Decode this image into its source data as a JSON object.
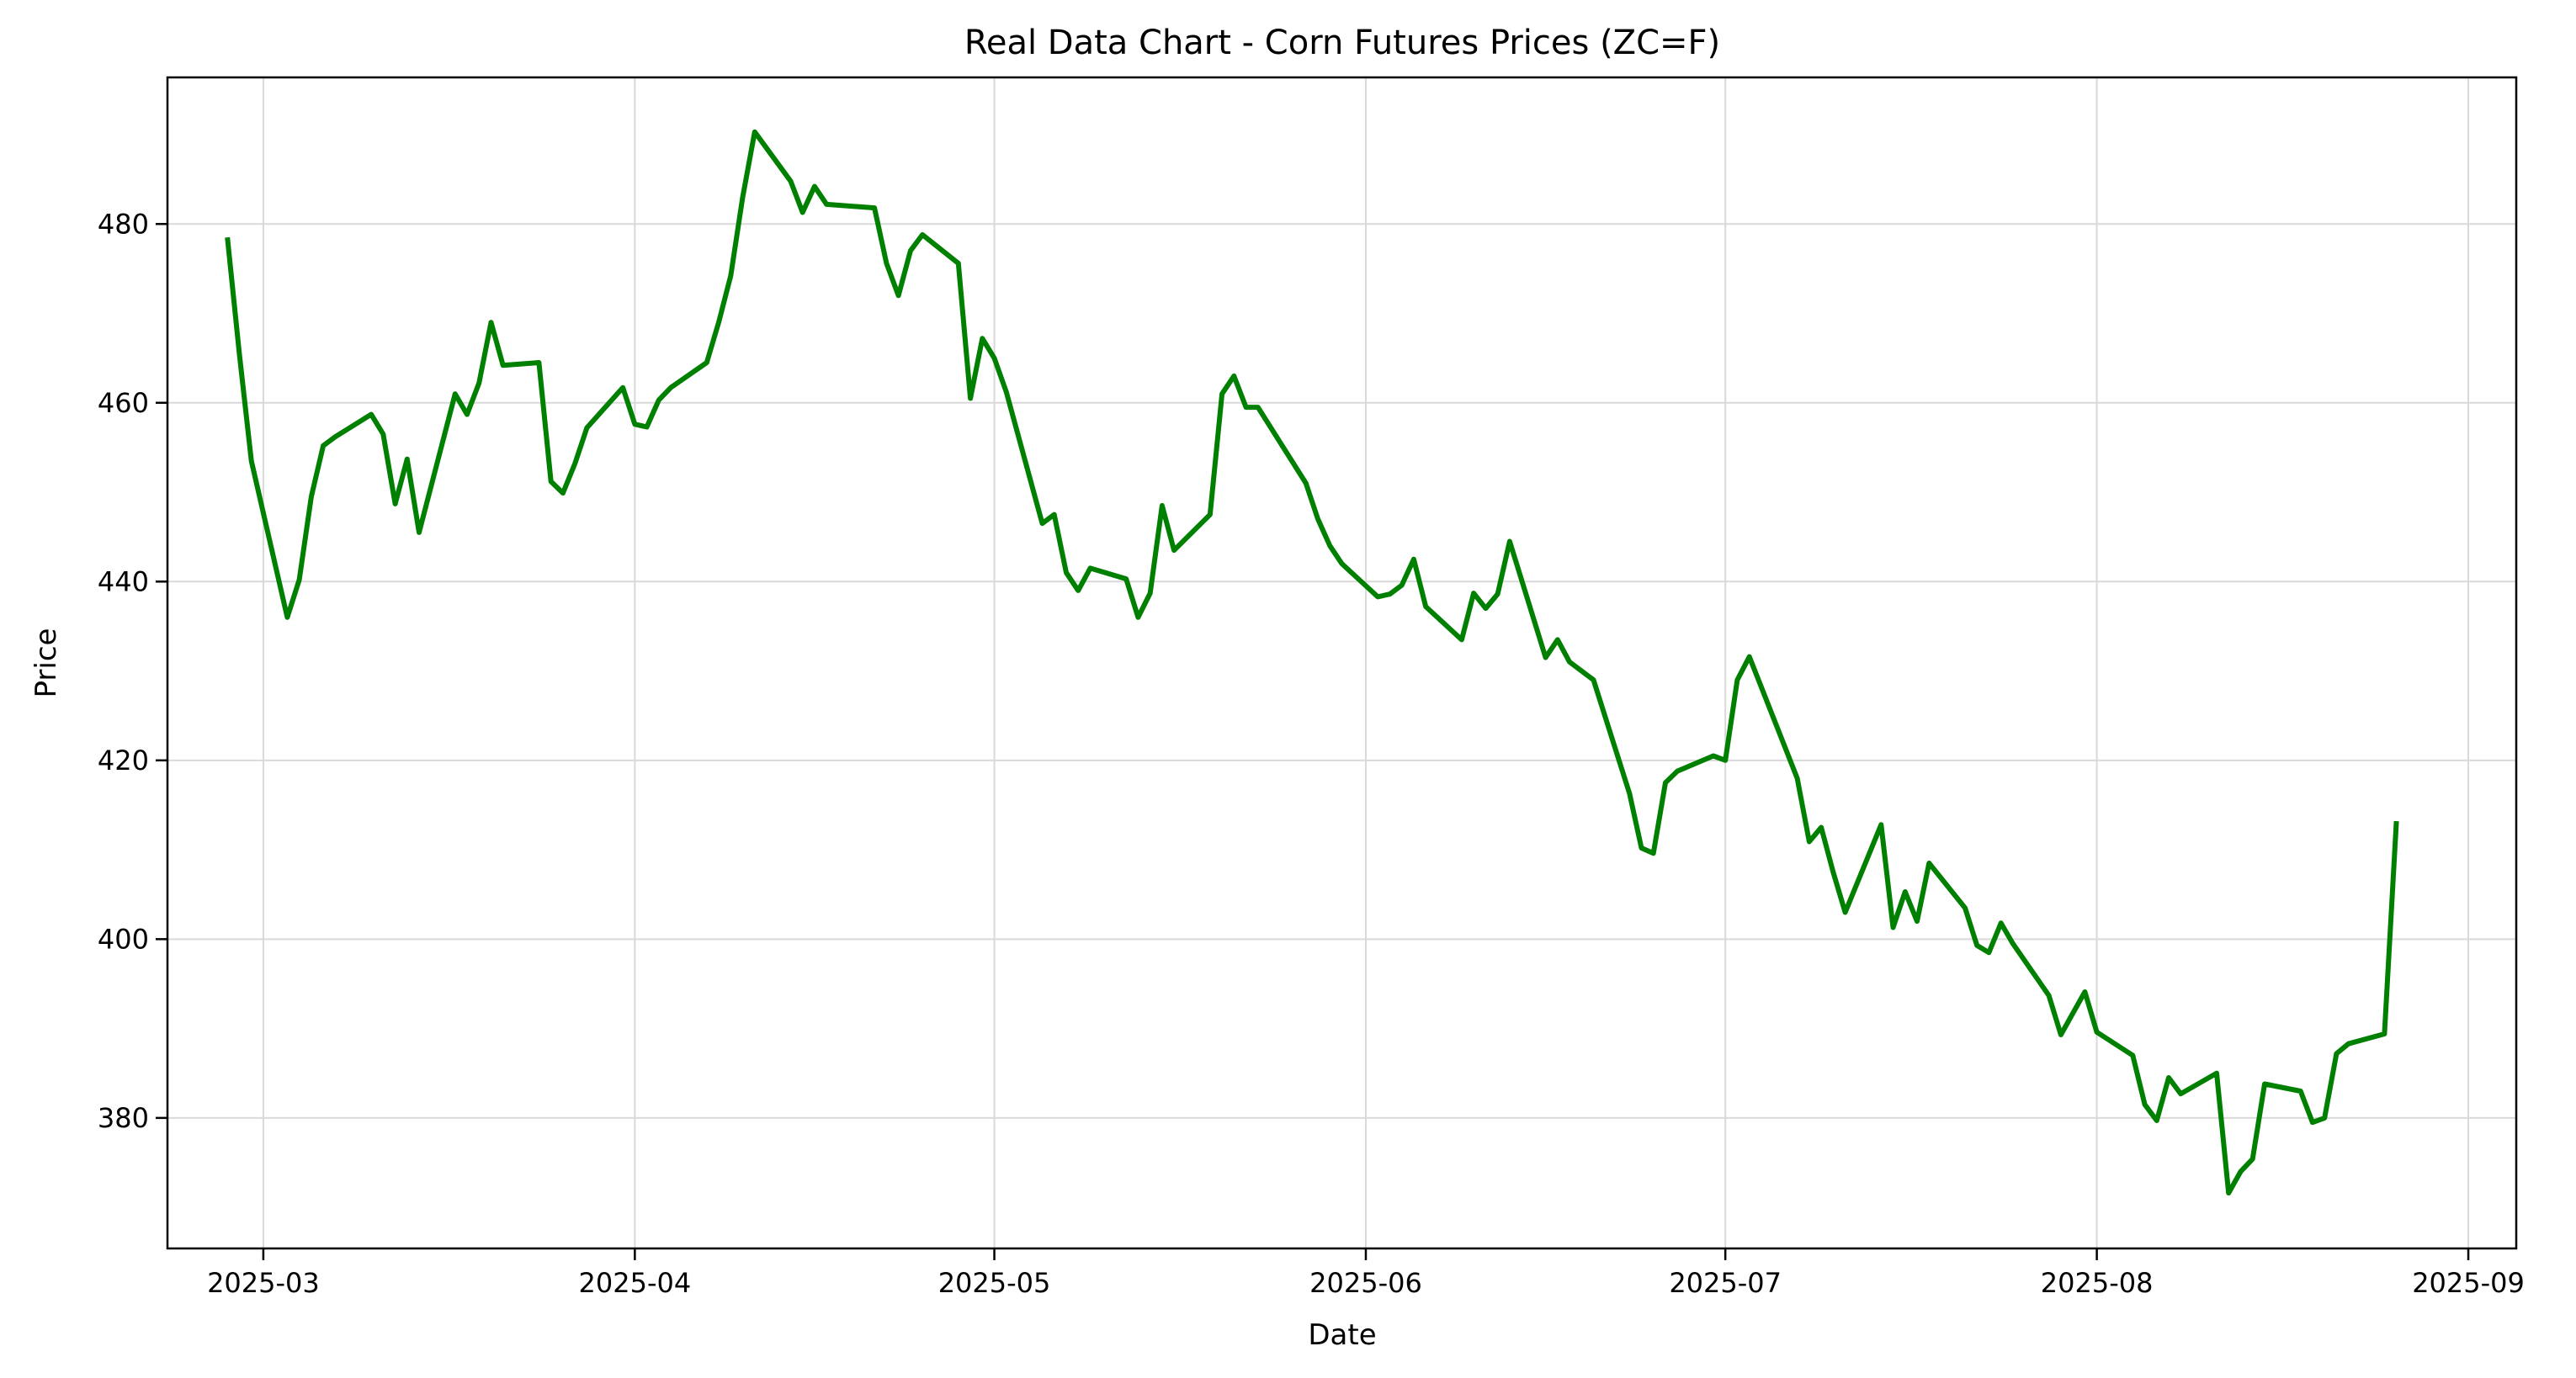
{
  "chart_data": {
    "type": "line",
    "title": "Real Data Chart - Corn Futures Prices (ZC=F)",
    "xlabel": "Date",
    "ylabel": "Price",
    "line_color": "#008000",
    "grid": true,
    "legend": "none",
    "xlim": [
      "2025-02-21",
      "2025-09-05"
    ],
    "ylim": [
      365.4,
      496.4
    ],
    "x_ticks": [
      "2025-03-01",
      "2025-04-01",
      "2025-05-01",
      "2025-06-01",
      "2025-07-01",
      "2025-08-01",
      "2025-09-01"
    ],
    "x_tick_labels": [
      "2025-03",
      "2025-04",
      "2025-05",
      "2025-06",
      "2025-07",
      "2025-08",
      "2025-09"
    ],
    "y_ticks": [
      380,
      400,
      420,
      440,
      460,
      480
    ],
    "y_tick_labels": [
      "380",
      "400",
      "420",
      "440",
      "460",
      "480"
    ],
    "series": [
      {
        "x": [
          "2025-02-26",
          "2025-02-27",
          "2025-02-28",
          "2025-03-03",
          "2025-03-04",
          "2025-03-05",
          "2025-03-06",
          "2025-03-07",
          "2025-03-10",
          "2025-03-11",
          "2025-03-12",
          "2025-03-13",
          "2025-03-14",
          "2025-03-17",
          "2025-03-18",
          "2025-03-19",
          "2025-03-20",
          "2025-03-21",
          "2025-03-24",
          "2025-03-25",
          "2025-03-26",
          "2025-03-27",
          "2025-03-28",
          "2025-03-31",
          "2025-04-01",
          "2025-04-02",
          "2025-04-03",
          "2025-04-04",
          "2025-04-07",
          "2025-04-08",
          "2025-04-09",
          "2025-04-10",
          "2025-04-11",
          "2025-04-14",
          "2025-04-15",
          "2025-04-16",
          "2025-04-17",
          "2025-04-21",
          "2025-04-22",
          "2025-04-23",
          "2025-04-24",
          "2025-04-25",
          "2025-04-28",
          "2025-04-29",
          "2025-04-30",
          "2025-05-01",
          "2025-05-02",
          "2025-05-05",
          "2025-05-06",
          "2025-05-07",
          "2025-05-08",
          "2025-05-09",
          "2025-05-12",
          "2025-05-13",
          "2025-05-14",
          "2025-05-15",
          "2025-05-16",
          "2025-05-19",
          "2025-05-20",
          "2025-05-21",
          "2025-05-22",
          "2025-05-23",
          "2025-05-27",
          "2025-05-28",
          "2025-05-29",
          "2025-05-30",
          "2025-06-02",
          "2025-06-03",
          "2025-06-04",
          "2025-06-05",
          "2025-06-06",
          "2025-06-09",
          "2025-06-10",
          "2025-06-11",
          "2025-06-12",
          "2025-06-13",
          "2025-06-16",
          "2025-06-17",
          "2025-06-18",
          "2025-06-20",
          "2025-06-23",
          "2025-06-24",
          "2025-06-25",
          "2025-06-26",
          "2025-06-27",
          "2025-06-30",
          "2025-07-01",
          "2025-07-02",
          "2025-07-03",
          "2025-07-07",
          "2025-07-08",
          "2025-07-09",
          "2025-07-10",
          "2025-07-11",
          "2025-07-14",
          "2025-07-15",
          "2025-07-16",
          "2025-07-17",
          "2025-07-18",
          "2025-07-21",
          "2025-07-22",
          "2025-07-23",
          "2025-07-24",
          "2025-07-25",
          "2025-07-28",
          "2025-07-29",
          "2025-07-30",
          "2025-07-31",
          "2025-08-01",
          "2025-08-04",
          "2025-08-05",
          "2025-08-06",
          "2025-08-07",
          "2025-08-08",
          "2025-08-11",
          "2025-08-12",
          "2025-08-13",
          "2025-08-14",
          "2025-08-15",
          "2025-08-18",
          "2025-08-19",
          "2025-08-20",
          "2025-08-21",
          "2025-08-22",
          "2025-08-25",
          "2025-08-26"
        ],
        "values": [
          478.5,
          465.5,
          453.5,
          436.0,
          440.2,
          449.5,
          455.2,
          456.2,
          458.7,
          456.5,
          448.7,
          453.7,
          445.5,
          461.0,
          458.7,
          462.2,
          469.0,
          464.2,
          464.5,
          451.2,
          449.9,
          453.2,
          457.2,
          461.7,
          457.6,
          457.3,
          460.3,
          461.7,
          464.5,
          469.0,
          474.2,
          483.0,
          490.3,
          484.8,
          481.3,
          484.2,
          482.2,
          481.8,
          475.6,
          472.0,
          477.0,
          478.8,
          475.6,
          460.5,
          467.2,
          465.0,
          461.2,
          446.5,
          447.5,
          441.0,
          439.0,
          441.5,
          440.3,
          436.0,
          438.7,
          448.5,
          443.5,
          447.5,
          461.0,
          463.0,
          459.5,
          459.5,
          451.0,
          447.0,
          444.0,
          442.0,
          438.3,
          438.6,
          439.6,
          442.5,
          437.2,
          433.5,
          438.7,
          437.0,
          438.6,
          444.5,
          431.5,
          433.5,
          431.0,
          429.0,
          416.3,
          410.2,
          409.6,
          417.5,
          418.8,
          420.5,
          420.0,
          429.0,
          431.6,
          418.0,
          410.9,
          412.5,
          407.5,
          403.0,
          412.8,
          401.3,
          405.3,
          402.0,
          408.5,
          403.5,
          399.3,
          398.5,
          401.8,
          399.5,
          393.7,
          389.3,
          391.7,
          394.1,
          389.6,
          387.0,
          381.5,
          379.7,
          384.5,
          382.7,
          385.0,
          371.6,
          374.0,
          375.4,
          383.8,
          383.0,
          379.5,
          380.0,
          387.2,
          388.3,
          389.4,
          413.2
        ]
      }
    ]
  }
}
